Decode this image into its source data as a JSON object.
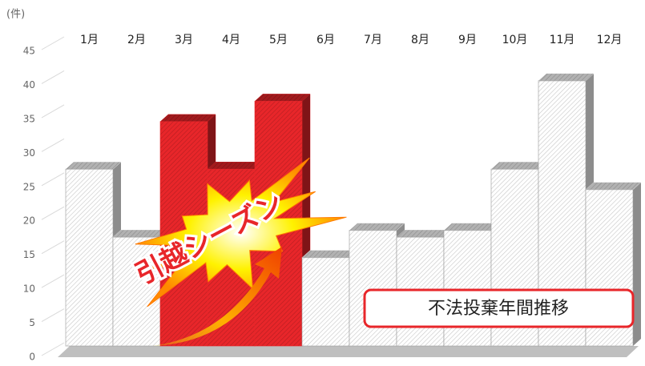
{
  "chart_data": {
    "type": "bar3d",
    "unit_label": "(件)",
    "categories": [
      "1月",
      "2月",
      "3月",
      "4月",
      "5月",
      "6月",
      "7月",
      "8月",
      "9月",
      "10月",
      "11月",
      "12月"
    ],
    "values": [
      26,
      16,
      33,
      26,
      36,
      13,
      17,
      16,
      17,
      26,
      39,
      23
    ],
    "colors": [
      "#ffffff",
      "#ffffff",
      "#e8262a",
      "#e8262a",
      "#e8262a",
      "#ffffff",
      "#ffffff",
      "#ffffff",
      "#ffffff",
      "#ffffff",
      "#ffffff",
      "#ffffff"
    ],
    "ylim": [
      0,
      45
    ],
    "yticks": [
      0,
      5,
      10,
      15,
      20,
      25,
      30,
      35,
      40,
      45
    ],
    "grid": true,
    "burst_text": "引越シーズン",
    "title": "不法投棄年間推移"
  }
}
